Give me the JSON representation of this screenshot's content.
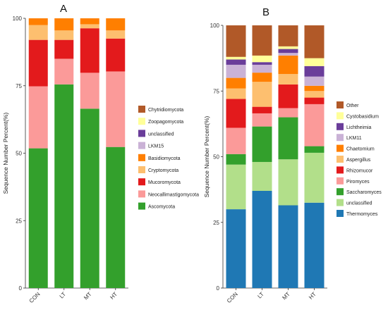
{
  "chart_data": [
    {
      "type": "bar",
      "stacked": true,
      "panel_label": "A",
      "ylabel": "Sequence Number Percent(%)",
      "xlabel": "",
      "categories": [
        "CON",
        "LT",
        "MT",
        "HT"
      ],
      "ylim": [
        0,
        100
      ],
      "yticks": [
        0,
        25,
        50,
        75,
        100
      ],
      "legend_position": "right",
      "series": [
        {
          "name": "Ascomycota",
          "color": "#33a02c",
          "values": [
            51.8,
            75.5,
            66.5,
            52.3
          ]
        },
        {
          "name": "Neocallimastigomycota",
          "color": "#fb9a99",
          "values": [
            23.0,
            9.5,
            13.3,
            28.0
          ]
        },
        {
          "name": "Mucoromycota",
          "color": "#e31a1c",
          "values": [
            17.2,
            7.0,
            16.5,
            12.2
          ]
        },
        {
          "name": "Cryptomycota",
          "color": "#fdbf6f",
          "values": [
            5.5,
            3.5,
            1.5,
            3.0
          ]
        },
        {
          "name": "Basidiomycota",
          "color": "#ff7f00",
          "values": [
            2.5,
            4.5,
            2.2,
            4.5
          ]
        },
        {
          "name": "LKM15",
          "color": "#cab2d6",
          "values": [
            0,
            0,
            0,
            0
          ]
        },
        {
          "name": "unclassified",
          "color": "#6a3d9a",
          "values": [
            0,
            0,
            0,
            0
          ]
        },
        {
          "name": "Zoopagomycota",
          "color": "#ffff99",
          "values": [
            0,
            0,
            0,
            0
          ]
        },
        {
          "name": "Chytridiomycota",
          "color": "#b15928",
          "values": [
            0,
            0,
            0,
            0
          ]
        }
      ]
    },
    {
      "type": "bar",
      "stacked": true,
      "panel_label": "B",
      "ylabel": "Sequence Number Percent(%)",
      "xlabel": "",
      "categories": [
        "CON",
        "LT",
        "MT",
        "HT"
      ],
      "ylim": [
        0,
        100
      ],
      "yticks": [
        0,
        25,
        50,
        75,
        100
      ],
      "legend_position": "right",
      "series": [
        {
          "name": "Thermomyces",
          "color": "#1f78b4",
          "values": [
            30.0,
            37.0,
            31.5,
            32.5
          ]
        },
        {
          "name": "unclassified",
          "color": "#b2df8a",
          "values": [
            17.0,
            11.0,
            17.5,
            19.0
          ]
        },
        {
          "name": "Saccharomyces",
          "color": "#33a02c",
          "values": [
            4.0,
            13.5,
            16.0,
            2.5
          ]
        },
        {
          "name": "Piromyces",
          "color": "#fb9a99",
          "values": [
            10.0,
            5.0,
            3.5,
            16.0
          ]
        },
        {
          "name": "Rhizomucor",
          "color": "#e31a1c",
          "values": [
            11.0,
            2.5,
            9.0,
            2.5
          ]
        },
        {
          "name": "Aspergillus",
          "color": "#fdbf6f",
          "values": [
            4.0,
            9.5,
            4.0,
            2.5
          ]
        },
        {
          "name": "Chaetomium",
          "color": "#ff7f00",
          "values": [
            4.0,
            3.5,
            7.0,
            2.0
          ]
        },
        {
          "name": "LKM11",
          "color": "#cab2d6",
          "values": [
            5.0,
            3.0,
            1.0,
            3.5
          ]
        },
        {
          "name": "Lichtheimia",
          "color": "#6a3d9a",
          "values": [
            2.0,
            1.0,
            1.5,
            4.0
          ]
        },
        {
          "name": "Cystobasidium",
          "color": "#ffff99",
          "values": [
            1.0,
            2.5,
            1.0,
            3.0
          ]
        },
        {
          "name": "Other",
          "color": "#b15928",
          "values": [
            12.0,
            11.5,
            8.0,
            12.5
          ]
        }
      ]
    }
  ]
}
